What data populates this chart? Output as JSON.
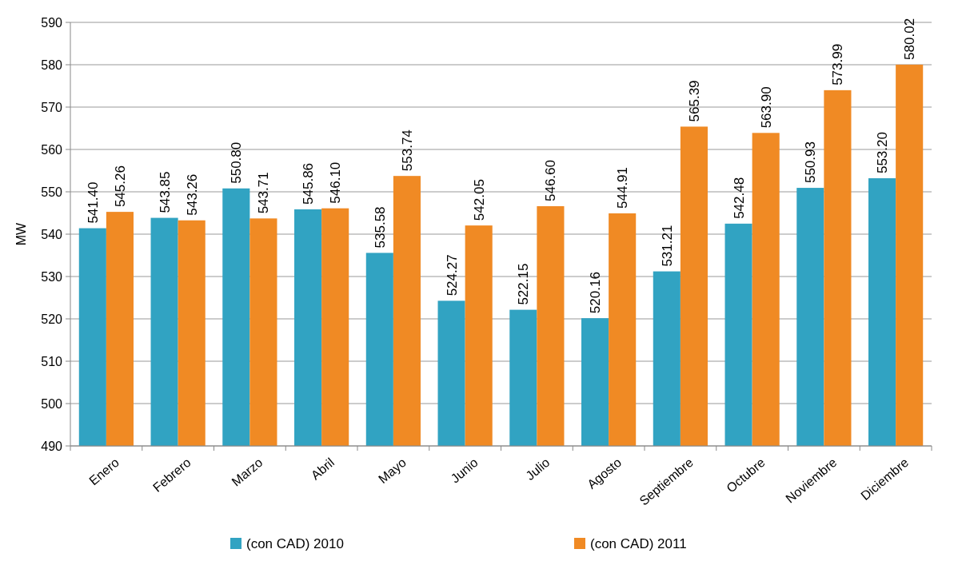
{
  "chart_data": {
    "type": "bar",
    "ylabel": "MW",
    "categories": [
      "Enero",
      "Febrero",
      "Marzo",
      "Abril",
      "Mayo",
      "Junio",
      "Julio",
      "Agosto",
      "Septiembre",
      "Octubre",
      "Noviembre",
      "Diciembre"
    ],
    "series": [
      {
        "name": "(con CAD) 2010",
        "color": "#31a3c2",
        "values": [
          541.4,
          543.85,
          550.8,
          545.86,
          535.58,
          524.27,
          522.15,
          520.16,
          531.21,
          542.48,
          550.93,
          553.2
        ],
        "value_labels": [
          "541.40",
          "543.85",
          "550.80",
          "545.86",
          "535.58",
          "524.27",
          "522.15",
          "520.16",
          "531.21",
          "542.48",
          "550.93",
          "553.20"
        ]
      },
      {
        "name": "(con CAD) 2011",
        "color": "#f08a24",
        "values": [
          545.26,
          543.26,
          543.71,
          546.1,
          553.74,
          542.05,
          546.6,
          544.91,
          565.39,
          563.9,
          573.99,
          580.02
        ],
        "value_labels": [
          "545.26",
          "543.26",
          "543.71",
          "546.10",
          "553.74",
          "542.05",
          "546.60",
          "544.91",
          "565.39",
          "563.90",
          "573.99",
          "580.02"
        ]
      }
    ],
    "ylim": [
      490,
      590
    ],
    "yticks": [
      490,
      500,
      510,
      520,
      530,
      540,
      550,
      560,
      570,
      580,
      590
    ],
    "grid": "y",
    "legend": "bottom"
  }
}
